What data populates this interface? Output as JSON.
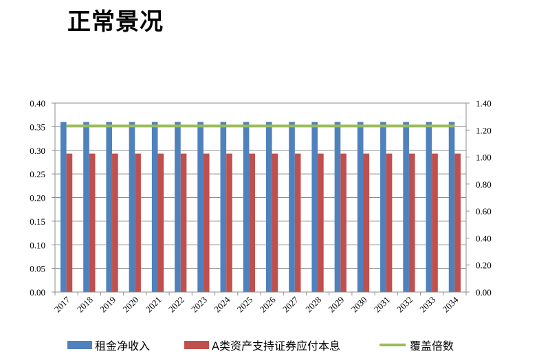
{
  "title": "正常景况",
  "chart_data": {
    "type": "bar",
    "categories": [
      "2017",
      "2018",
      "2019",
      "2020",
      "2021",
      "2022",
      "2023",
      "2024",
      "2025",
      "2026",
      "2027",
      "2028",
      "2029",
      "2030",
      "2031",
      "2032",
      "2033",
      "2034"
    ],
    "series": [
      {
        "name": "租金净收入",
        "type": "bar",
        "axis": "left",
        "color": "#4F81BD",
        "values": [
          0.36,
          0.36,
          0.36,
          0.36,
          0.36,
          0.36,
          0.36,
          0.36,
          0.36,
          0.36,
          0.36,
          0.36,
          0.36,
          0.36,
          0.36,
          0.36,
          0.36,
          0.36
        ]
      },
      {
        "name": "A类资产支持证券应付本息",
        "type": "bar",
        "axis": "left",
        "color": "#C0504D",
        "values": [
          0.293,
          0.293,
          0.293,
          0.293,
          0.293,
          0.293,
          0.293,
          0.293,
          0.293,
          0.293,
          0.293,
          0.293,
          0.293,
          0.293,
          0.293,
          0.293,
          0.293,
          0.293
        ]
      },
      {
        "name": "覆盖倍数",
        "type": "line",
        "axis": "right",
        "color": "#9BBB59",
        "values": [
          1.23,
          1.23,
          1.23,
          1.23,
          1.23,
          1.23,
          1.23,
          1.23,
          1.23,
          1.23,
          1.23,
          1.23,
          1.23,
          1.23,
          1.23,
          1.23,
          1.23,
          1.23
        ]
      }
    ],
    "y_left": {
      "ylim": [
        0,
        0.4
      ],
      "ticks": [
        "0.00",
        "0.05",
        "0.10",
        "0.15",
        "0.20",
        "0.25",
        "0.30",
        "0.35",
        "0.40"
      ]
    },
    "y_right": {
      "ylim": [
        0,
        1.4
      ],
      "ticks": [
        "0.00",
        "0.20",
        "0.40",
        "0.60",
        "0.80",
        "1.00",
        "1.20",
        "1.40"
      ]
    },
    "grid": true,
    "legend_position": "bottom"
  }
}
